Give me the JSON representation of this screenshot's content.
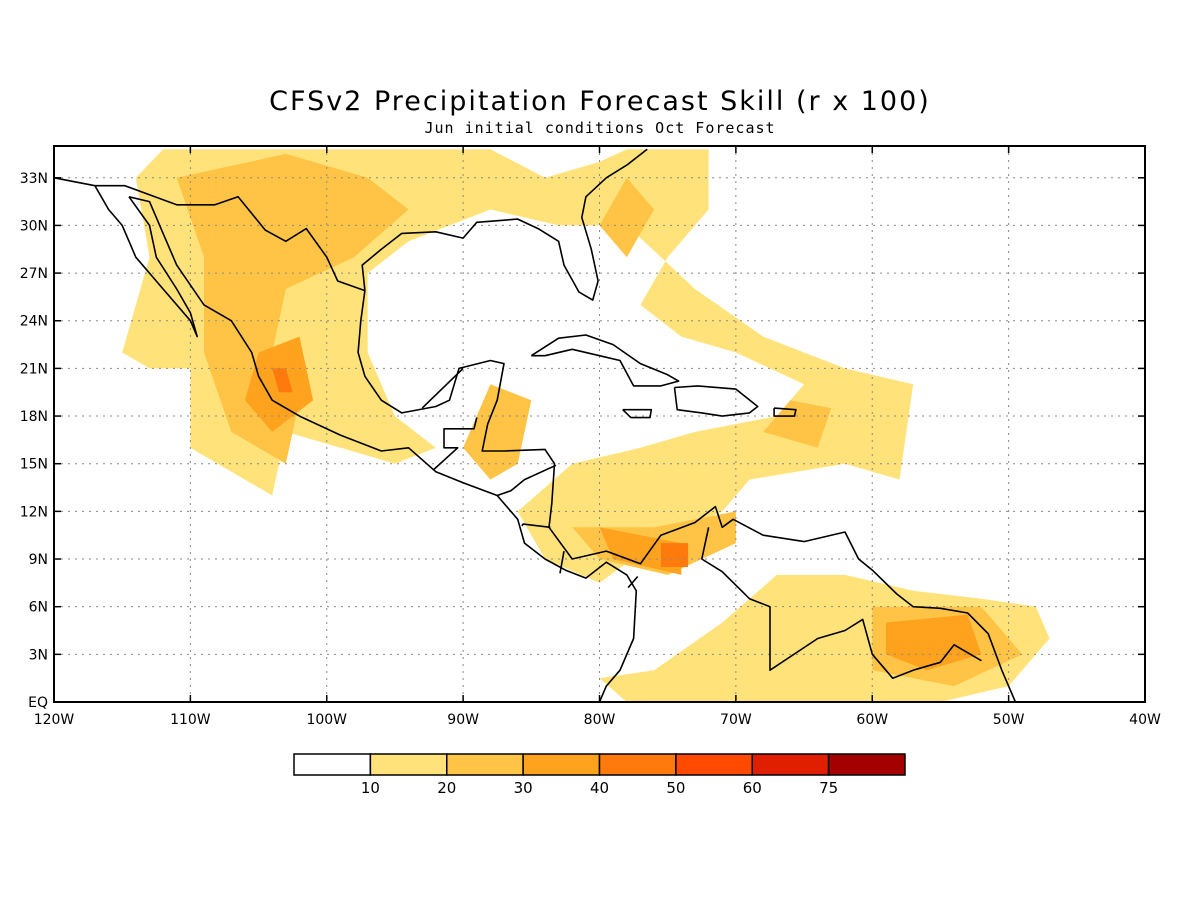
{
  "title": "CFSv2 Precipitation Forecast Skill (r x 100)",
  "subtitle": "Jun initial conditions  Oct Forecast",
  "chart_data": {
    "type": "heatmap",
    "title": "CFSv2 Precipitation Forecast Skill (r x 100)",
    "subtitle": "Jun initial conditions  Oct Forecast",
    "xlim": [
      -120,
      -40
    ],
    "ylim": [
      0,
      35
    ],
    "x_ticks": [
      {
        "value": -120,
        "label": "120W"
      },
      {
        "value": -110,
        "label": "110W"
      },
      {
        "value": -100,
        "label": "100W"
      },
      {
        "value": -90,
        "label": "90W"
      },
      {
        "value": -80,
        "label": "80W"
      },
      {
        "value": -70,
        "label": "70W"
      },
      {
        "value": -60,
        "label": "60W"
      },
      {
        "value": -50,
        "label": "50W"
      },
      {
        "value": -40,
        "label": "40W"
      }
    ],
    "y_ticks": [
      {
        "value": 0,
        "label": "EQ"
      },
      {
        "value": 3,
        "label": "3N"
      },
      {
        "value": 6,
        "label": "6N"
      },
      {
        "value": 9,
        "label": "9N"
      },
      {
        "value": 12,
        "label": "12N"
      },
      {
        "value": 15,
        "label": "15N"
      },
      {
        "value": 18,
        "label": "18N"
      },
      {
        "value": 21,
        "label": "21N"
      },
      {
        "value": 24,
        "label": "24N"
      },
      {
        "value": 27,
        "label": "27N"
      },
      {
        "value": 30,
        "label": "30N"
      },
      {
        "value": 33,
        "label": "33N"
      }
    ],
    "grid": true,
    "colorbar": {
      "colors": [
        "#ffffff",
        "#ffe37a",
        "#ffc445",
        "#ffa21e",
        "#ff7a0d",
        "#ff4a00",
        "#e01e00",
        "#a50000"
      ],
      "labels": [
        "10",
        "20",
        "30",
        "40",
        "50",
        "60",
        "75"
      ]
    },
    "skill_regions": [
      {
        "level": 1,
        "points": [
          [
            -112,
            34.8
          ],
          [
            -103,
            34.8
          ],
          [
            -94,
            34.8
          ],
          [
            -88,
            34.8
          ],
          [
            -84,
            33
          ],
          [
            -80,
            34
          ],
          [
            -78,
            34.8
          ],
          [
            -72,
            34.8
          ],
          [
            -72,
            31
          ],
          [
            -75,
            28
          ],
          [
            -77,
            25
          ],
          [
            -74,
            23
          ],
          [
            -70,
            22
          ],
          [
            -65,
            20
          ],
          [
            -67,
            18
          ],
          [
            -73,
            17
          ],
          [
            -77,
            16
          ],
          [
            -82,
            15
          ],
          [
            -86,
            12
          ],
          [
            -84,
            9
          ],
          [
            -80,
            7.5
          ],
          [
            -76,
            10
          ],
          [
            -71,
            12
          ],
          [
            -69,
            14
          ],
          [
            -62,
            15
          ],
          [
            -58,
            14
          ],
          [
            -57,
            20
          ],
          [
            -62,
            21
          ],
          [
            -68,
            23
          ],
          [
            -73,
            26
          ],
          [
            -78,
            30
          ],
          [
            -83,
            30
          ],
          [
            -88,
            31
          ],
          [
            -94,
            29
          ],
          [
            -97,
            27
          ],
          [
            -97,
            22
          ],
          [
            -95,
            18
          ],
          [
            -92,
            16
          ],
          [
            -95,
            15
          ],
          [
            -99,
            16
          ],
          [
            -103,
            17
          ],
          [
            -104,
            13
          ],
          [
            -110,
            16
          ],
          [
            -110,
            21
          ],
          [
            -113,
            21
          ],
          [
            -115,
            22
          ],
          [
            -113,
            28
          ],
          [
            -114,
            33
          ]
        ]
      },
      {
        "level": 1,
        "points": [
          [
            -80,
            1.5
          ],
          [
            -76,
            2
          ],
          [
            -71,
            5
          ],
          [
            -67,
            8
          ],
          [
            -62,
            8
          ],
          [
            -57,
            7
          ],
          [
            -52,
            6.5
          ],
          [
            -48,
            6
          ],
          [
            -47,
            4
          ],
          [
            -50,
            1
          ],
          [
            -55,
            0
          ],
          [
            -70,
            0
          ],
          [
            -78,
            0
          ]
        ]
      },
      {
        "level": 2,
        "points": [
          [
            -111,
            33
          ],
          [
            -103,
            34.5
          ],
          [
            -97,
            33
          ],
          [
            -94,
            31
          ],
          [
            -98,
            28
          ],
          [
            -103,
            26
          ],
          [
            -104,
            22
          ],
          [
            -102,
            19
          ],
          [
            -103,
            15
          ],
          [
            -107,
            17
          ],
          [
            -109,
            22
          ],
          [
            -109,
            28
          ]
        ]
      },
      {
        "level": 2,
        "points": [
          [
            -88,
            20
          ],
          [
            -85,
            19
          ],
          [
            -86,
            15
          ],
          [
            -88,
            14
          ],
          [
            -90,
            16
          ]
        ]
      },
      {
        "level": 2,
        "points": [
          [
            -78,
            33
          ],
          [
            -76,
            31
          ],
          [
            -78,
            28
          ],
          [
            -80,
            30
          ]
        ]
      },
      {
        "level": 2,
        "points": [
          [
            -82,
            11
          ],
          [
            -76,
            11
          ],
          [
            -70,
            12
          ],
          [
            -70,
            10
          ],
          [
            -75,
            8
          ],
          [
            -80,
            9
          ]
        ]
      },
      {
        "level": 2,
        "points": [
          [
            -60,
            6
          ],
          [
            -52,
            6
          ],
          [
            -49,
            3
          ],
          [
            -54,
            1
          ],
          [
            -60,
            2
          ]
        ]
      },
      {
        "level": 2,
        "points": [
          [
            -66,
            19
          ],
          [
            -63,
            18.5
          ],
          [
            -64,
            16
          ],
          [
            -68,
            17
          ]
        ]
      },
      {
        "level": 3,
        "points": [
          [
            -105,
            22
          ],
          [
            -102,
            23
          ],
          [
            -101,
            19
          ],
          [
            -104,
            17
          ],
          [
            -106,
            19
          ]
        ]
      },
      {
        "level": 3,
        "points": [
          [
            -59,
            5
          ],
          [
            -53,
            5.5
          ],
          [
            -52,
            3
          ],
          [
            -56,
            2
          ],
          [
            -59,
            3
          ]
        ]
      },
      {
        "level": 3,
        "points": [
          [
            -80,
            11
          ],
          [
            -74,
            10
          ],
          [
            -74,
            8
          ],
          [
            -79,
            9
          ]
        ]
      },
      {
        "level": 4,
        "points": [
          [
            -104,
            21
          ],
          [
            -103,
            21
          ],
          [
            -102.5,
            19.5
          ],
          [
            -103.5,
            19.5
          ]
        ]
      },
      {
        "level": 4,
        "points": [
          [
            -75.5,
            10
          ],
          [
            -73.5,
            10
          ],
          [
            -73.5,
            8.5
          ],
          [
            -75.5,
            8.5
          ]
        ]
      }
    ],
    "coastlines": [
      [
        [
          -117,
          32.5
        ],
        [
          -116,
          31
        ],
        [
          -115,
          30
        ],
        [
          -114,
          28
        ],
        [
          -112,
          26
        ],
        [
          -110,
          24
        ],
        [
          -109.5,
          23
        ],
        [
          -110,
          24.5
        ],
        [
          -111,
          26
        ],
        [
          -112.5,
          28
        ],
        [
          -113,
          30
        ],
        [
          -114.5,
          31.8
        ]
      ],
      [
        [
          -114.5,
          31.8
        ],
        [
          -113,
          31.5
        ],
        [
          -112,
          29.5
        ],
        [
          -111,
          27.5
        ],
        [
          -109,
          25
        ],
        [
          -107,
          24
        ],
        [
          -105.5,
          22
        ],
        [
          -105,
          20.5
        ],
        [
          -104,
          19
        ],
        [
          -102,
          18
        ],
        [
          -99,
          16.8
        ],
        [
          -96,
          15.8
        ],
        [
          -94,
          16
        ],
        [
          -92,
          14.5
        ],
        [
          -90,
          13.8
        ],
        [
          -87.5,
          13
        ],
        [
          -86,
          11.5
        ],
        [
          -85.5,
          10
        ],
        [
          -84,
          9
        ],
        [
          -82.5,
          8.3
        ],
        [
          -81,
          7.8
        ],
        [
          -79.5,
          8.8
        ],
        [
          -78,
          8
        ],
        [
          -77.3,
          7
        ],
        [
          -77.5,
          4
        ],
        [
          -78.5,
          2
        ],
        [
          -79.5,
          1
        ],
        [
          -80,
          0
        ]
      ],
      [
        [
          -97.2,
          25.9
        ],
        [
          -97.5,
          24
        ],
        [
          -97.7,
          22
        ],
        [
          -97.2,
          20.5
        ],
        [
          -96,
          19
        ],
        [
          -94.5,
          18.2
        ],
        [
          -92,
          18.6
        ],
        [
          -91,
          19
        ],
        [
          -90.3,
          21
        ],
        [
          -88,
          21.5
        ],
        [
          -87,
          21.3
        ],
        [
          -87.5,
          19
        ],
        [
          -88.2,
          17.5
        ],
        [
          -88.6,
          15.8
        ],
        [
          -87,
          15.8
        ],
        [
          -84,
          15.9
        ],
        [
          -83.3,
          15
        ],
        [
          -83.5,
          12.5
        ],
        [
          -83.7,
          11
        ],
        [
          -82,
          9
        ],
        [
          -79.5,
          9.5
        ],
        [
          -77,
          8.7
        ],
        [
          -75.5,
          10.5
        ],
        [
          -73,
          11.3
        ],
        [
          -71.5,
          12.3
        ],
        [
          -71,
          11
        ],
        [
          -70.2,
          11.5
        ],
        [
          -68,
          10.5
        ],
        [
          -65,
          10.1
        ],
        [
          -62,
          10.7
        ],
        [
          -61,
          9
        ],
        [
          -60,
          8.3
        ],
        [
          -58.2,
          6.8
        ],
        [
          -57,
          6
        ],
        [
          -55,
          5.9
        ],
        [
          -53,
          5.6
        ],
        [
          -51.5,
          4.3
        ],
        [
          -50.5,
          2
        ],
        [
          -50,
          1
        ],
        [
          -49.5,
          0
        ]
      ],
      [
        [
          -97.2,
          25.9
        ],
        [
          -97.4,
          27.5
        ],
        [
          -96,
          28.5
        ],
        [
          -94.5,
          29.5
        ],
        [
          -92,
          29.6
        ],
        [
          -90,
          29.2
        ],
        [
          -89,
          30.2
        ],
        [
          -86,
          30.4
        ],
        [
          -84.5,
          29.8
        ],
        [
          -83,
          29
        ],
        [
          -82.6,
          27.5
        ],
        [
          -81.5,
          25.8
        ],
        [
          -80.5,
          25.3
        ],
        [
          -80.1,
          26.5
        ],
        [
          -80.6,
          28.5
        ],
        [
          -81.3,
          30.5
        ],
        [
          -81,
          31.8
        ],
        [
          -79.5,
          33
        ],
        [
          -78,
          33.8
        ],
        [
          -76.5,
          34.8
        ]
      ],
      [
        [
          -85,
          21.8
        ],
        [
          -83,
          22.9
        ],
        [
          -81,
          23.1
        ],
        [
          -79,
          22.5
        ],
        [
          -77,
          21.3
        ],
        [
          -75,
          20.6
        ],
        [
          -74.2,
          20.2
        ],
        [
          -75.5,
          19.9
        ],
        [
          -77.5,
          19.9
        ],
        [
          -78.5,
          21.5
        ],
        [
          -80,
          21.8
        ],
        [
          -82,
          22.2
        ],
        [
          -84,
          21.8
        ],
        [
          -85,
          21.8
        ]
      ],
      [
        [
          -74.5,
          19.8
        ],
        [
          -72.8,
          19.9
        ],
        [
          -70,
          19.7
        ],
        [
          -68.4,
          18.6
        ],
        [
          -69,
          18.2
        ],
        [
          -71,
          18
        ],
        [
          -72.5,
          18.2
        ],
        [
          -74.3,
          18.4
        ],
        [
          -74.5,
          19.8
        ]
      ],
      [
        [
          -78.3,
          18.4
        ],
        [
          -76.2,
          18.4
        ],
        [
          -76.3,
          17.9
        ],
        [
          -77.7,
          17.9
        ],
        [
          -78.3,
          18.4
        ]
      ],
      [
        [
          -67.2,
          18.5
        ],
        [
          -65.6,
          18.4
        ],
        [
          -65.7,
          18
        ],
        [
          -67.2,
          18
        ],
        [
          -67.2,
          18.5
        ]
      ],
      [
        [
          -89,
          17.9
        ],
        [
          -89.2,
          17.2
        ],
        [
          -91.4,
          17.2
        ],
        [
          -91.4,
          16
        ],
        [
          -90.4,
          16
        ],
        [
          -92.2,
          14.6
        ]
      ],
      [
        [
          -83.2,
          14.9
        ],
        [
          -85.5,
          14
        ],
        [
          -86.5,
          13.3
        ],
        [
          -87.5,
          13
        ]
      ],
      [
        [
          -83.6,
          11
        ],
        [
          -85.6,
          11.2
        ],
        [
          -85.7,
          11.1
        ]
      ],
      [
        [
          -82.9,
          8.1
        ],
        [
          -82.6,
          9.5
        ]
      ],
      [
        [
          -77.2,
          7.9
        ],
        [
          -77.9,
          7.2
        ]
      ],
      [
        [
          -72,
          11
        ],
        [
          -72.5,
          9
        ],
        [
          -71,
          8.2
        ],
        [
          -69,
          6.5
        ],
        [
          -67.5,
          6
        ],
        [
          -67.5,
          2
        ],
        [
          -64,
          4
        ],
        [
          -62,
          4.5
        ],
        [
          -60.7,
          5.2
        ],
        [
          -60,
          3
        ],
        [
          -58.5,
          1.5
        ],
        [
          -57,
          2
        ],
        [
          -55,
          2.5
        ],
        [
          -54,
          3.6
        ],
        [
          -52,
          2.6
        ]
      ],
      [
        [
          -90,
          21
        ],
        [
          -93,
          18.5
        ]
      ],
      [
        [
          -120,
          33
        ],
        [
          -117,
          32.5
        ],
        [
          -114.8,
          32.5
        ],
        [
          -111,
          31.3
        ],
        [
          -108.2,
          31.3
        ],
        [
          -106.5,
          31.8
        ],
        [
          -104.5,
          29.7
        ],
        [
          -103,
          29
        ],
        [
          -101.5,
          29.8
        ],
        [
          -100,
          28
        ],
        [
          -99.2,
          26.5
        ],
        [
          -97.2,
          25.9
        ]
      ]
    ]
  }
}
